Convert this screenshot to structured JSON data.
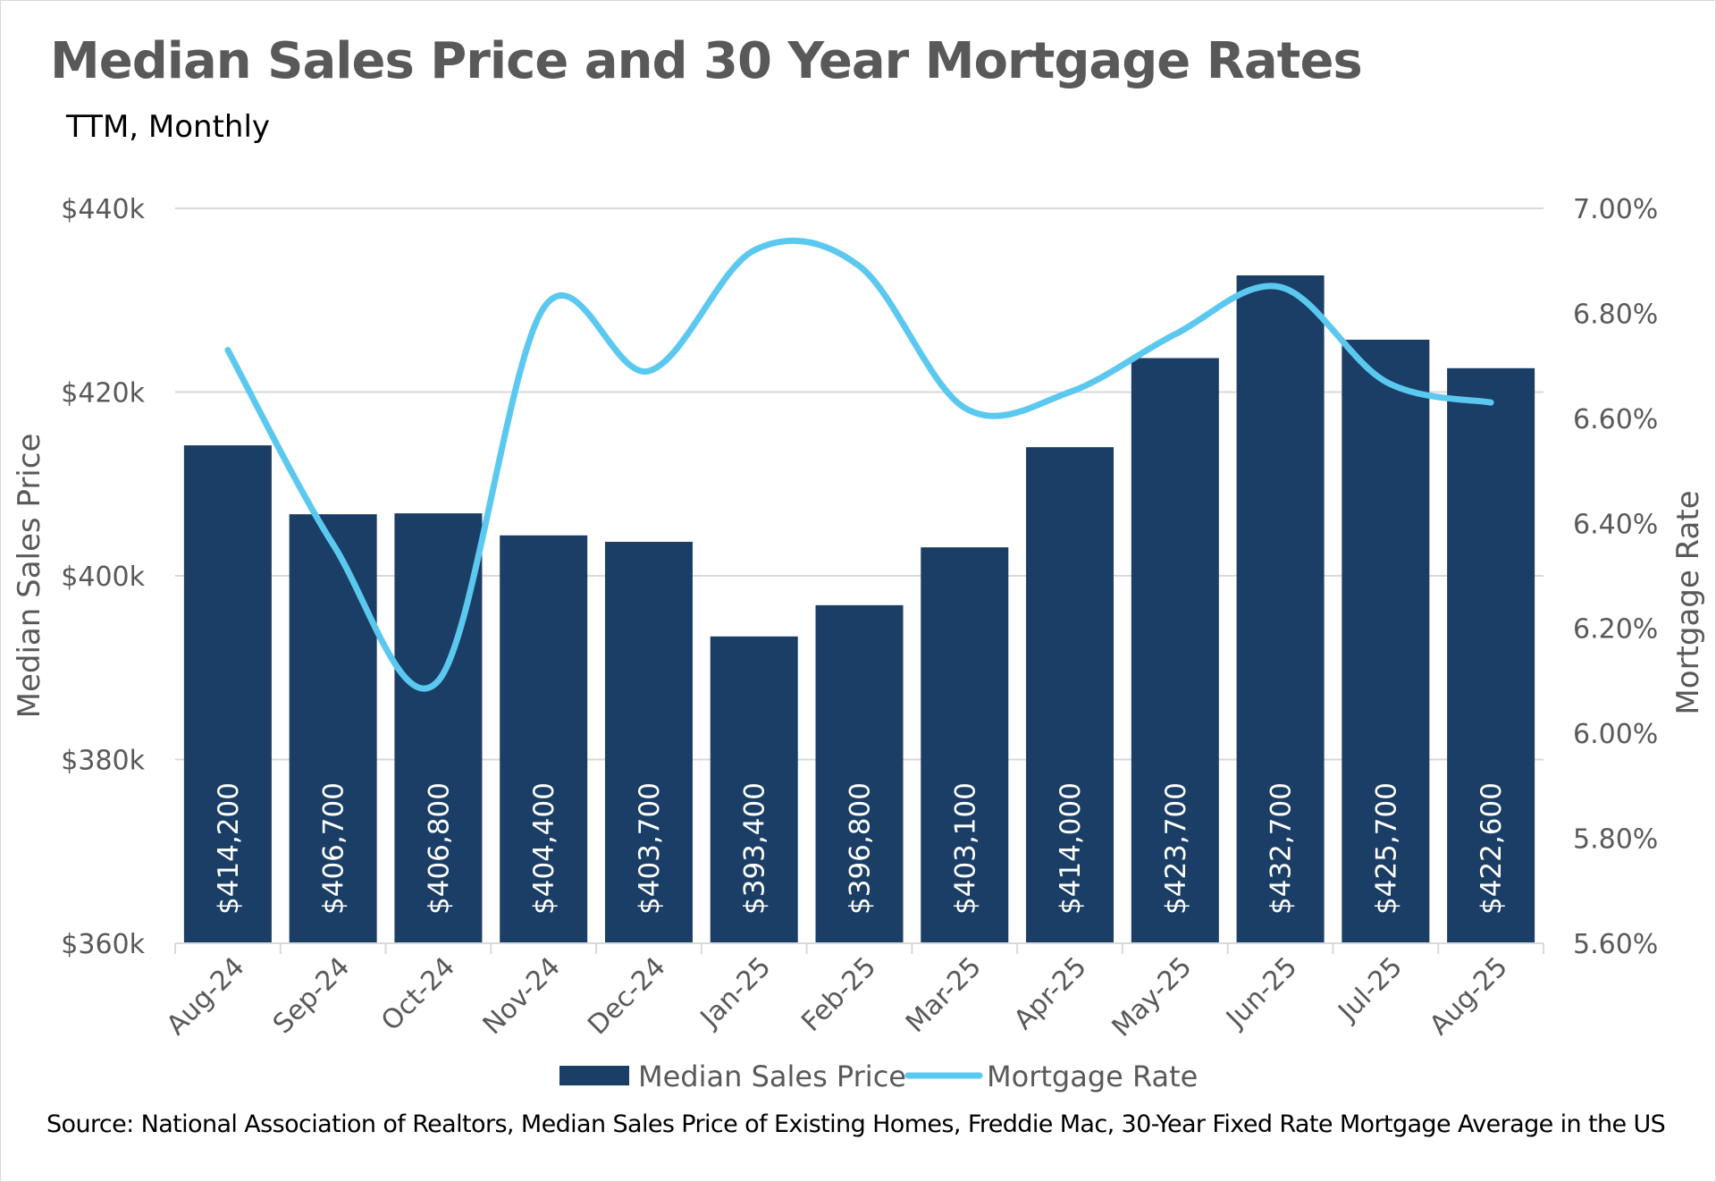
{
  "chart_data": {
    "type": "bar+line",
    "title": "Median Sales Price and 30 Year Mortgage Rates",
    "subtitle": "TTM, Monthly",
    "categories": [
      "Aug-24",
      "Sep-24",
      "Oct-24",
      "Nov-24",
      "Dec-24",
      "Jan-25",
      "Feb-25",
      "Mar-25",
      "Apr-25",
      "May-25",
      "Jun-25",
      "Jul-25",
      "Aug-25"
    ],
    "series": [
      {
        "name": "Median Sales Price",
        "type": "bar",
        "axis": "left",
        "color": "#1a3e66",
        "values": [
          414200,
          406700,
          406800,
          404400,
          403700,
          393400,
          396800,
          403100,
          414000,
          423700,
          432700,
          425700,
          422600
        ],
        "data_labels": [
          "$414,200",
          "$406,700",
          "$406,800",
          "$404,400",
          "$403,700",
          "$393,400",
          "$396,800",
          "$403,100",
          "$414,000",
          "$423,700",
          "$432,700",
          "$425,700",
          "$422,600"
        ]
      },
      {
        "name": "Mortgage Rate",
        "type": "line",
        "smooth": true,
        "axis": "right",
        "color": "#5bc8ef",
        "values": [
          6.73,
          6.36,
          6.1,
          6.81,
          6.69,
          6.92,
          6.89,
          6.62,
          6.65,
          6.76,
          6.85,
          6.67,
          6.63
        ]
      }
    ],
    "y_left": {
      "label": "Median Sales Price",
      "range": [
        360000,
        440000
      ],
      "ticks": [
        360000,
        380000,
        400000,
        420000,
        440000
      ],
      "tick_labels": [
        "$360k",
        "$380k",
        "$400k",
        "$420k",
        "$440k"
      ]
    },
    "y_right": {
      "label": "Mortgage Rate",
      "range": [
        5.6,
        7.0
      ],
      "ticks": [
        5.6,
        5.8,
        6.0,
        6.2,
        6.4,
        6.6,
        6.8,
        7.0
      ],
      "tick_labels": [
        "5.60%",
        "5.80%",
        "6.00%",
        "6.20%",
        "6.40%",
        "6.60%",
        "6.80%",
        "7.00%"
      ]
    },
    "grid": true,
    "legend_position": "bottom"
  },
  "source": "Source: National Association of Realtors, Median Sales Price of Existing Homes, Freddie Mac, 30-Year Fixed Rate Mortgage Average in the US"
}
